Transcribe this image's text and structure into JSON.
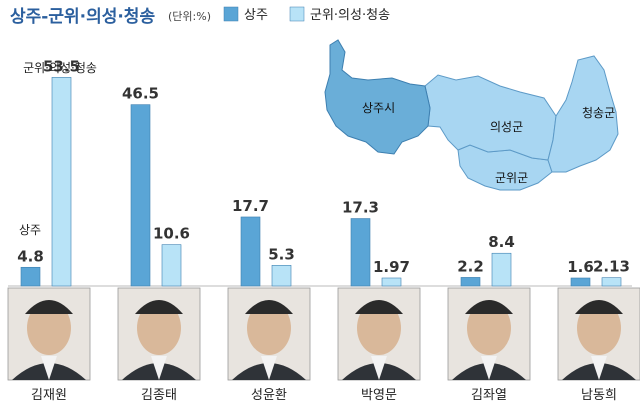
{
  "chart_data": {
    "type": "bar",
    "title": "상주-군위·의성·청송",
    "unit": "(단위:%)",
    "legend": [
      "상주",
      "군위·의성·청송"
    ],
    "colors": {
      "sangju": "#5aa5d6",
      "gunwi": "#b8e3f7",
      "map_dark": "#6aaed8",
      "map_light": "#a8d6f2"
    },
    "ylim": [
      0,
      55
    ],
    "categories": [
      "김재원",
      "김종태",
      "성윤환",
      "박영문",
      "김좌열",
      "남동희"
    ],
    "series": [
      {
        "name": "상주",
        "values": [
          4.8,
          46.5,
          17.7,
          17.3,
          2.2,
          1.6
        ]
      },
      {
        "name": "군위·의성·청송",
        "values": [
          53.5,
          10.6,
          5.3,
          1.97,
          8.4,
          2.13
        ]
      }
    ],
    "annotations": {
      "first_sangju": "상주",
      "first_gunwi": "군위·의성·청송"
    },
    "map_regions": [
      "상주시",
      "의성군",
      "청송군",
      "군위군"
    ]
  }
}
